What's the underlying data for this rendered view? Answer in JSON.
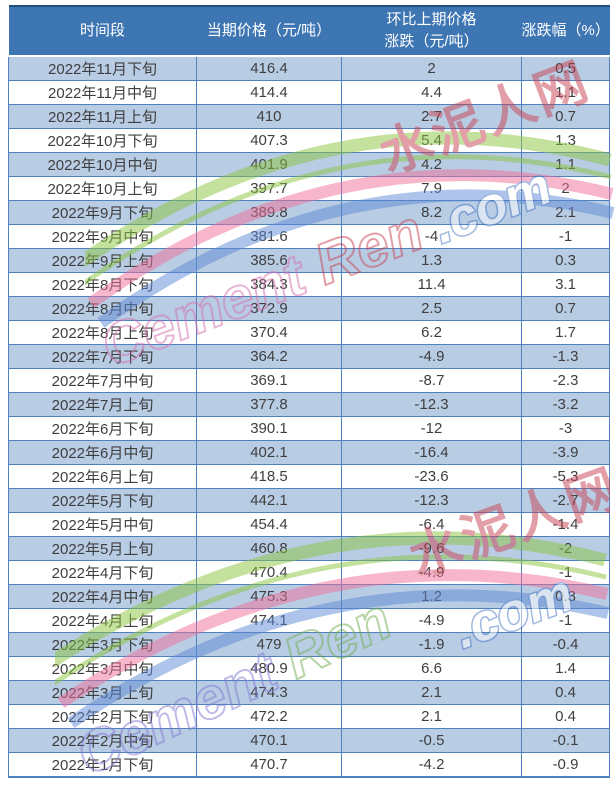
{
  "chart_data": {
    "type": "table",
    "columns": [
      "时间段",
      "当期价格（元/吨）",
      "环比上期价格涨跌（元/吨）",
      "涨跌幅（%）"
    ],
    "header": {
      "col1": "时间段",
      "col2": "当期价格（元/吨）",
      "col3_line1": "环比上期价格",
      "col3_line2": "涨跌（元/吨）",
      "col4": "涨跌幅（%）"
    },
    "rows": [
      [
        "2022年11月下旬",
        "416.4",
        "2",
        "0.5"
      ],
      [
        "2022年11月中旬",
        "414.4",
        "4.4",
        "1.1"
      ],
      [
        "2022年11月上旬",
        "410",
        "2.7",
        "0.7"
      ],
      [
        "2022年10月下旬",
        "407.3",
        "5.4",
        "1.3"
      ],
      [
        "2022年10月中旬",
        "401.9",
        "4.2",
        "1.1"
      ],
      [
        "2022年10月上旬",
        "397.7",
        "7.9",
        "2"
      ],
      [
        "2022年9月下旬",
        "389.8",
        "8.2",
        "2.1"
      ],
      [
        "2022年9月中旬",
        "381.6",
        "-4",
        "-1"
      ],
      [
        "2022年9月上旬",
        "385.6",
        "1.3",
        "0.3"
      ],
      [
        "2022年8月下旬",
        "384.3",
        "11.4",
        "3.1"
      ],
      [
        "2022年8月中旬",
        "372.9",
        "2.5",
        "0.7"
      ],
      [
        "2022年8月上旬",
        "370.4",
        "6.2",
        "1.7"
      ],
      [
        "2022年7月下旬",
        "364.2",
        "-4.9",
        "-1.3"
      ],
      [
        "2022年7月中旬",
        "369.1",
        "-8.7",
        "-2.3"
      ],
      [
        "2022年7月上旬",
        "377.8",
        "-12.3",
        "-3.2"
      ],
      [
        "2022年6月下旬",
        "390.1",
        "-12",
        "-3"
      ],
      [
        "2022年6月中旬",
        "402.1",
        "-16.4",
        "-3.9"
      ],
      [
        "2022年6月上旬",
        "418.5",
        "-23.6",
        "-5.3"
      ],
      [
        "2022年5月下旬",
        "442.1",
        "-12.3",
        "-2.7"
      ],
      [
        "2022年5月中旬",
        "454.4",
        "-6.4",
        "-1.4"
      ],
      [
        "2022年5月上旬",
        "460.8",
        "-9.6",
        "-2"
      ],
      [
        "2022年4月下旬",
        "470.4",
        "-4.9",
        "-1"
      ],
      [
        "2022年4月中旬",
        "475.3",
        "1.2",
        "0.3"
      ],
      [
        "2022年4月上旬",
        "474.1",
        "-4.9",
        "-1"
      ],
      [
        "2022年3月下旬",
        "479",
        "-1.9",
        "-0.4"
      ],
      [
        "2022年3月中旬",
        "480.9",
        "6.6",
        "1.4"
      ],
      [
        "2022年3月上旬",
        "474.3",
        "2.1",
        "0.4"
      ],
      [
        "2022年2月下旬",
        "472.2",
        "2.1",
        "0.4"
      ],
      [
        "2022年2月中旬",
        "470.1",
        "-0.5",
        "-0.1"
      ],
      [
        "2022年1月下旬",
        "470.7",
        "-4.2",
        "-0.9"
      ]
    ]
  },
  "watermark": {
    "site_name_cn": "水泥人网",
    "site_suffix": ".com",
    "site_name_en_part1": "Cement",
    "site_name_en_part2": "Ren"
  },
  "colors": {
    "header_bg": "#3E76B4",
    "header_text": "#FFFFFF",
    "row_alt_bg": "#B8CCE4",
    "row_bg": "#FFFFFF",
    "grid_border": "#4F81BD",
    "table_top_border": "#1F4E79",
    "body_text": "#3F3F3F",
    "wm_red": "#C84251",
    "wm_blue": "#4472C4",
    "wm_green": "#8CC540",
    "wm_pink": "#F0709A"
  }
}
